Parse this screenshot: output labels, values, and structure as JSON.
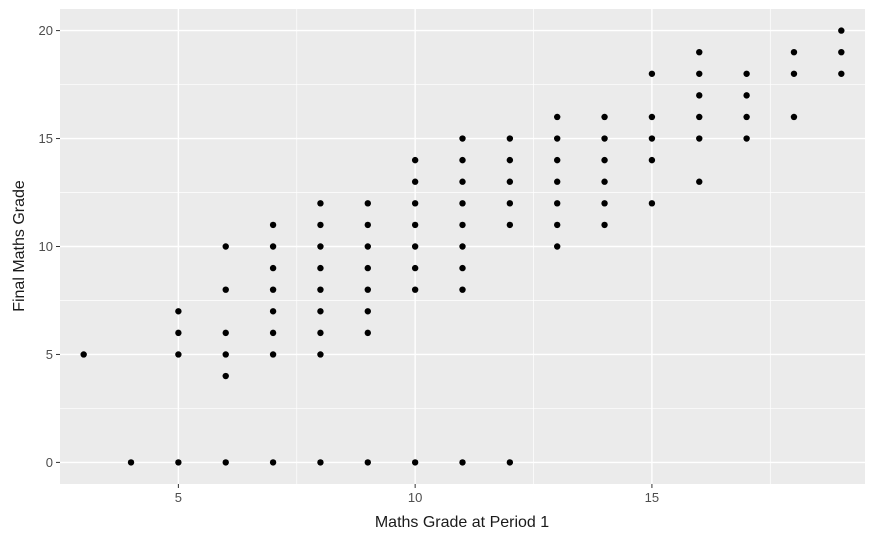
{
  "chart_data": {
    "type": "scatter",
    "title": "",
    "xlabel": "Maths Grade at Period 1",
    "ylabel": "Final Maths Grade",
    "xlim": [
      2.5,
      19.5
    ],
    "ylim": [
      -1,
      21
    ],
    "x_ticks": [
      5,
      10,
      15
    ],
    "y_ticks": [
      0,
      5,
      10,
      15,
      20
    ],
    "grid": true,
    "legend": "none",
    "colors": {
      "panel": "#ebebeb",
      "grid": "#ffffff",
      "point": "#000000"
    },
    "points": [
      {
        "x": 3,
        "y": 5
      },
      {
        "x": 4,
        "y": 0
      },
      {
        "x": 5,
        "y": 0
      },
      {
        "x": 5,
        "y": 5
      },
      {
        "x": 5,
        "y": 6
      },
      {
        "x": 5,
        "y": 7
      },
      {
        "x": 6,
        "y": 0
      },
      {
        "x": 6,
        "y": 4
      },
      {
        "x": 6,
        "y": 5
      },
      {
        "x": 6,
        "y": 6
      },
      {
        "x": 6,
        "y": 8
      },
      {
        "x": 6,
        "y": 10
      },
      {
        "x": 7,
        "y": 0
      },
      {
        "x": 7,
        "y": 5
      },
      {
        "x": 7,
        "y": 6
      },
      {
        "x": 7,
        "y": 7
      },
      {
        "x": 7,
        "y": 8
      },
      {
        "x": 7,
        "y": 9
      },
      {
        "x": 7,
        "y": 10
      },
      {
        "x": 7,
        "y": 11
      },
      {
        "x": 8,
        "y": 0
      },
      {
        "x": 8,
        "y": 5
      },
      {
        "x": 8,
        "y": 6
      },
      {
        "x": 8,
        "y": 7
      },
      {
        "x": 8,
        "y": 8
      },
      {
        "x": 8,
        "y": 9
      },
      {
        "x": 8,
        "y": 10
      },
      {
        "x": 8,
        "y": 11
      },
      {
        "x": 8,
        "y": 12
      },
      {
        "x": 9,
        "y": 0
      },
      {
        "x": 9,
        "y": 6
      },
      {
        "x": 9,
        "y": 7
      },
      {
        "x": 9,
        "y": 8
      },
      {
        "x": 9,
        "y": 9
      },
      {
        "x": 9,
        "y": 10
      },
      {
        "x": 9,
        "y": 11
      },
      {
        "x": 9,
        "y": 12
      },
      {
        "x": 10,
        "y": 0
      },
      {
        "x": 10,
        "y": 8
      },
      {
        "x": 10,
        "y": 9
      },
      {
        "x": 10,
        "y": 10
      },
      {
        "x": 10,
        "y": 11
      },
      {
        "x": 10,
        "y": 12
      },
      {
        "x": 10,
        "y": 13
      },
      {
        "x": 10,
        "y": 14
      },
      {
        "x": 11,
        "y": 0
      },
      {
        "x": 11,
        "y": 8
      },
      {
        "x": 11,
        "y": 9
      },
      {
        "x": 11,
        "y": 10
      },
      {
        "x": 11,
        "y": 11
      },
      {
        "x": 11,
        "y": 12
      },
      {
        "x": 11,
        "y": 13
      },
      {
        "x": 11,
        "y": 14
      },
      {
        "x": 11,
        "y": 15
      },
      {
        "x": 12,
        "y": 0
      },
      {
        "x": 12,
        "y": 11
      },
      {
        "x": 12,
        "y": 12
      },
      {
        "x": 12,
        "y": 13
      },
      {
        "x": 12,
        "y": 14
      },
      {
        "x": 12,
        "y": 15
      },
      {
        "x": 13,
        "y": 10
      },
      {
        "x": 13,
        "y": 11
      },
      {
        "x": 13,
        "y": 12
      },
      {
        "x": 13,
        "y": 13
      },
      {
        "x": 13,
        "y": 14
      },
      {
        "x": 13,
        "y": 15
      },
      {
        "x": 13,
        "y": 16
      },
      {
        "x": 14,
        "y": 11
      },
      {
        "x": 14,
        "y": 12
      },
      {
        "x": 14,
        "y": 13
      },
      {
        "x": 14,
        "y": 14
      },
      {
        "x": 14,
        "y": 15
      },
      {
        "x": 14,
        "y": 16
      },
      {
        "x": 15,
        "y": 12
      },
      {
        "x": 15,
        "y": 14
      },
      {
        "x": 15,
        "y": 15
      },
      {
        "x": 15,
        "y": 16
      },
      {
        "x": 15,
        "y": 18
      },
      {
        "x": 16,
        "y": 13
      },
      {
        "x": 16,
        "y": 15
      },
      {
        "x": 16,
        "y": 16
      },
      {
        "x": 16,
        "y": 17
      },
      {
        "x": 16,
        "y": 18
      },
      {
        "x": 16,
        "y": 19
      },
      {
        "x": 17,
        "y": 15
      },
      {
        "x": 17,
        "y": 16
      },
      {
        "x": 17,
        "y": 17
      },
      {
        "x": 17,
        "y": 18
      },
      {
        "x": 18,
        "y": 16
      },
      {
        "x": 18,
        "y": 18
      },
      {
        "x": 18,
        "y": 19
      },
      {
        "x": 19,
        "y": 18
      },
      {
        "x": 19,
        "y": 19
      },
      {
        "x": 19,
        "y": 20
      }
    ]
  }
}
